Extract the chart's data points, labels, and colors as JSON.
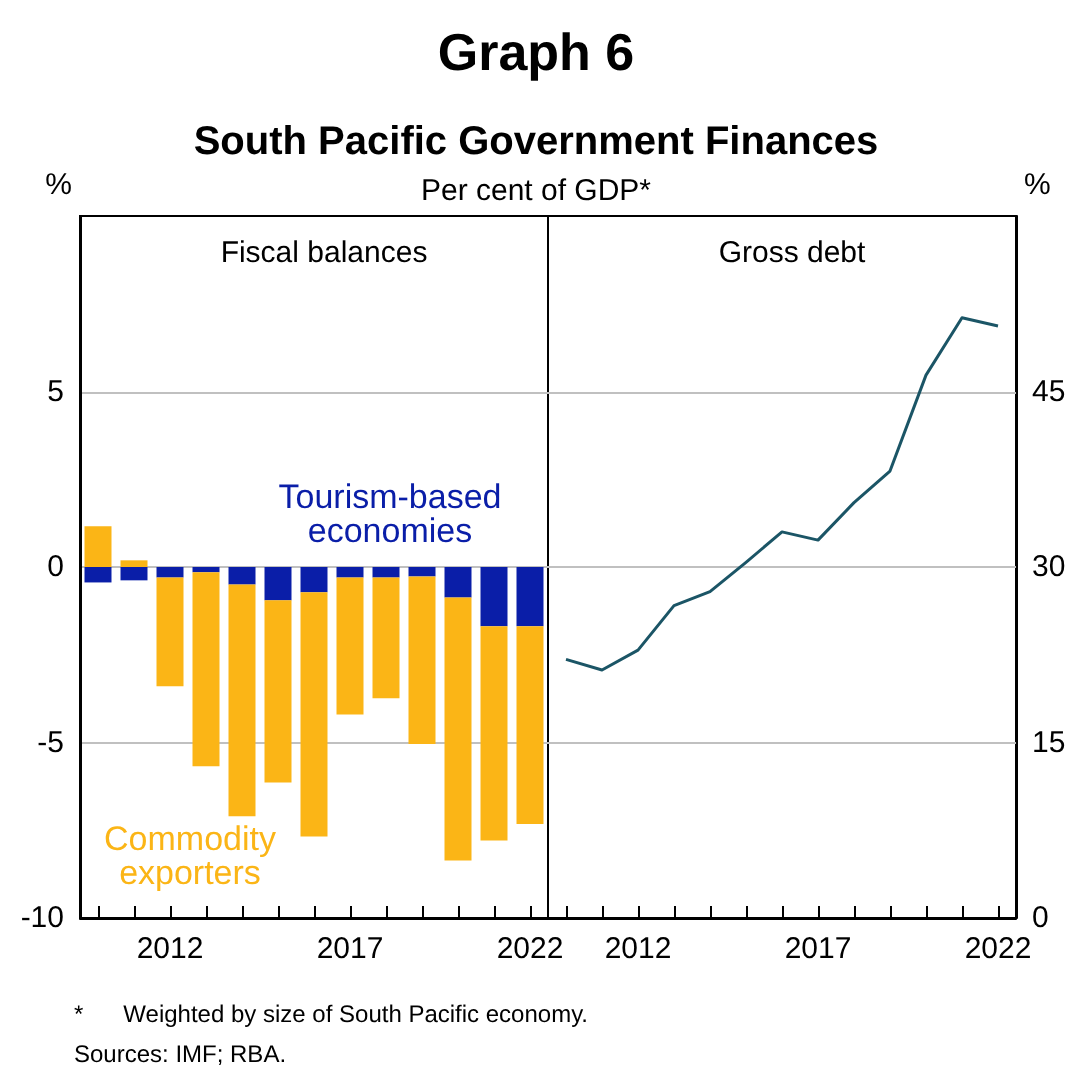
{
  "chart_data": [
    {
      "type": "bar",
      "title": "Fiscal balances",
      "ylabel": "%",
      "stacked": true,
      "grid": "y",
      "legend": false,
      "annotations": [
        "Graph 6",
        "South Pacific Government Finances",
        "Per cent of GDP*",
        "*      Weighted by size of South Pacific economy.",
        "Sources: IMF; RBA."
      ],
      "categories": [
        null,
        null,
        "2012",
        null,
        null,
        null,
        null,
        "2017",
        null,
        null,
        null,
        null,
        "2022"
      ],
      "ylim": [
        -10,
        10
      ],
      "yticks": [
        -10,
        -5,
        0,
        5
      ],
      "series": [
        {
          "name": "Tourism-based economies",
          "color": "#0a1ea8",
          "values": [
            -0.44,
            -0.38,
            -0.3,
            -0.15,
            -0.5,
            -0.95,
            -0.72,
            -0.3,
            -0.3,
            -0.27,
            -0.87,
            -1.69,
            -1.69
          ]
        },
        {
          "name": "Commodity exporters",
          "color": "#fbb516",
          "values": [
            1.16,
            0.19,
            -3.1,
            -5.53,
            -6.6,
            -5.19,
            -6.96,
            -3.9,
            -3.44,
            -4.77,
            -7.49,
            -6.1,
            -5.63
          ]
        }
      ]
    },
    {
      "type": "line",
      "title": "Gross debt",
      "ylabel": "%",
      "grid": "y",
      "legend": false,
      "marker": "none",
      "line_style": "solid",
      "categories": [
        null,
        null,
        "2012",
        null,
        null,
        null,
        null,
        "2017",
        null,
        null,
        null,
        null,
        "2022"
      ],
      "ylim": [
        0,
        60
      ],
      "yticks": [
        0,
        15,
        30,
        45
      ],
      "series": [
        {
          "color": "#1b5566",
          "values": [
            22.1,
            21.2,
            22.9,
            26.7,
            27.9,
            30.4,
            33.0,
            32.3,
            35.5,
            38.2,
            46.4,
            51.3,
            50.6
          ]
        }
      ]
    }
  ]
}
